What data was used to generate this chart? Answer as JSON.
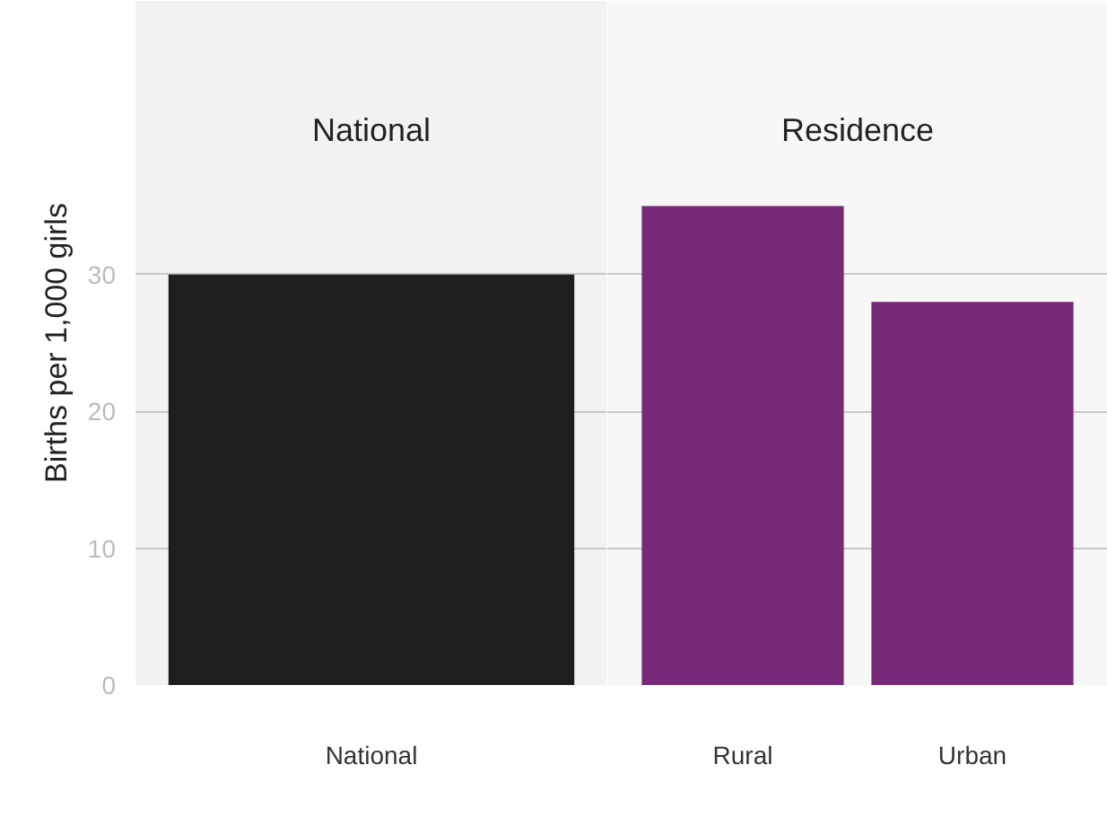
{
  "chart_data": [
    {
      "type": "bar",
      "title": "National",
      "categories": [
        "National"
      ],
      "values": [
        30
      ],
      "color": "#1e1e1e",
      "ylabel": "Births per 1,000 girls",
      "ylim": [
        0,
        50
      ],
      "yticks": [
        0,
        10,
        20,
        30
      ],
      "grid": "y"
    },
    {
      "type": "bar",
      "title": "Residence",
      "categories": [
        "Rural",
        "Urban"
      ],
      "values": [
        35,
        28
      ],
      "color": "#772a77",
      "ylim": [
        0,
        50
      ],
      "yticks": [
        0,
        10,
        20,
        30
      ],
      "grid": "y",
      "tick_labels": "x"
    }
  ]
}
